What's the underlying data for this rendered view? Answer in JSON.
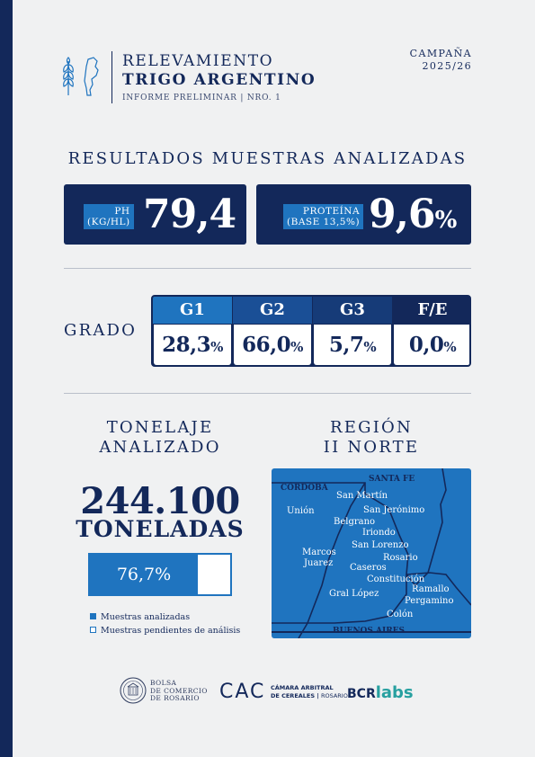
{
  "header": {
    "title_line1": "RELEVAMIENTO",
    "title_line2": "TRIGO ARGENTINO",
    "subtitle": "INFORME PRELIMINAR | NRO. 1",
    "campaign_label": "CAMPAÑA",
    "campaign_value": "2025/26"
  },
  "results": {
    "section_title": "RESULTADOS MUESTRAS ANALIZADAS",
    "ph": {
      "label_line1": "PH",
      "label_line2": "(KG/HL)",
      "value": "79,4"
    },
    "protein": {
      "label_line1": "PROTEÍNA",
      "label_line2": "(BASE 13,5%)",
      "value": "9,6",
      "unit": "%"
    }
  },
  "grado": {
    "label": "GRADO",
    "columns": [
      {
        "header": "G1",
        "value": "28,3",
        "unit": "%",
        "color": "#1f74bf"
      },
      {
        "header": "G2",
        "value": "66,0",
        "unit": "%",
        "color": "#1a4f96"
      },
      {
        "header": "G3",
        "value": "5,7",
        "unit": "%",
        "color": "#163b78"
      },
      {
        "header": "F/E",
        "value": "0,0",
        "unit": "%",
        "color": "#13285a"
      }
    ]
  },
  "tonnage": {
    "heading_line1": "TONELAJE",
    "heading_line2": "ANALIZADO",
    "value": "244.100",
    "unit": "TONELADAS",
    "progress_label": "76,7%",
    "progress_fraction": 0.767,
    "legend_analyzed": "Muestras analizadas",
    "legend_pending": "Muestras pendientes de análisis"
  },
  "region": {
    "heading_line1": "REGIÓN",
    "heading_line2": "II NORTE",
    "provinces": {
      "cordoba": "CÓRDOBA",
      "santa_fe": "SANTA FE",
      "buenos_aires": "BUENOS AIRES"
    },
    "departments": {
      "san_martin": "San Martín",
      "union": "Unión",
      "san_jeronimo": "San Jerónimo",
      "belgrano": "Belgrano",
      "iriondo": "Iriondo",
      "marcos_juarez_1": "Marcos",
      "marcos_juarez_2": "Juarez",
      "san_lorenzo": "San Lorenzo",
      "rosario": "Rosario",
      "caseros": "Caseros",
      "constitucion": "Constitución",
      "ramallo": "Ramallo",
      "gral_lopez": "Gral López",
      "pergamino": "Pergamino",
      "colon": "Colón"
    }
  },
  "footer": {
    "bcr_line1": "BOLSA",
    "bcr_line2": "DE COMERCIO",
    "bcr_line3": "DE ROSARIO",
    "cac_mark": "CAC",
    "cac_line1": "CÁMARA ARBITRAL",
    "cac_line2": "DE CEREALES",
    "cac_line3": "ROSARIO",
    "labs_a": "BCR",
    "labs_b": "labs"
  },
  "colors": {
    "navy": "#13285a",
    "blue": "#1f74bf",
    "background": "#f0f1f2",
    "teal": "#27a0a0"
  }
}
